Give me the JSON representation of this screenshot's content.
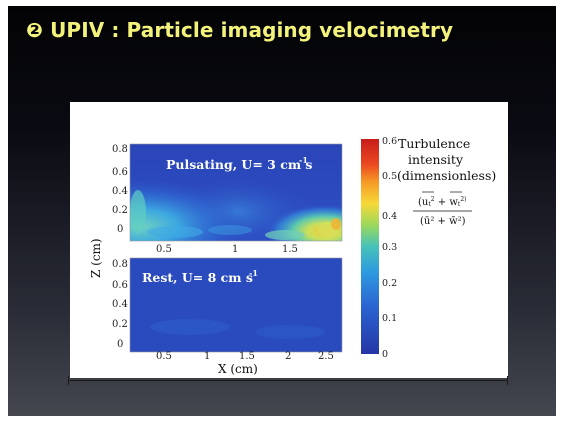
{
  "slide": {
    "title": "❷ UPIV : Particle imaging velocimetry"
  },
  "figure": {
    "y_axis_label": "Z (cm)",
    "x_axis_label": "X (cm)",
    "top_panel": {
      "title": "Pulsating, U= 3 cm s",
      "title_exp": "-1",
      "y_ticks": [
        "0.8",
        "0.6",
        "0.4",
        "0.2",
        "0"
      ],
      "x_ticks": [
        "0.5",
        "1",
        "1.5"
      ]
    },
    "bottom_panel": {
      "title": "Rest, U= 8 cm s",
      "title_exp": "-1",
      "y_ticks": [
        "0.8",
        "0.6",
        "0.4",
        "0.2",
        "0"
      ],
      "x_ticks": [
        "0.5",
        "1",
        "1.5",
        "2",
        "2.5"
      ]
    },
    "colorbar": {
      "ticks": [
        "0.6",
        "0.5",
        "0.4",
        "0.3",
        "0.2",
        "0.1",
        "0"
      ],
      "colors": [
        "#d42a1c",
        "#f08a22",
        "#f5d437",
        "#b8e05a",
        "#52c9b4",
        "#2b8fdb",
        "#2a52c8",
        "#2233a8"
      ]
    },
    "legend": {
      "line1": "Turbulence",
      "line2": "intensity",
      "line3": "(dimensionless)",
      "numerator": "(u",
      "numerator_mid": "2",
      "numerator_plus": " + w",
      "numerator_end": "2)",
      "denominator": "(ū² + w̄²)"
    }
  }
}
